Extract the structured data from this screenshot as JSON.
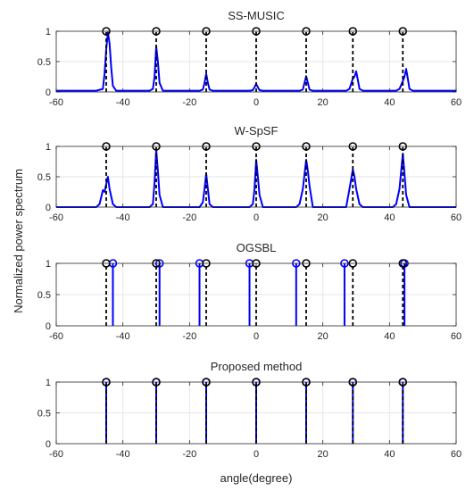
{
  "figure": {
    "ylabel": "Normalized power spectrum",
    "xlabel": "angle(degree)"
  },
  "colors": {
    "estimate": "#0000ff",
    "truth": "#000000",
    "grid": "#e6e6e6",
    "axis": "#262626"
  },
  "chart_data": [
    {
      "type": "line",
      "title": "SS-MUSIC",
      "xlim": [
        -60,
        60
      ],
      "ylim": [
        0,
        1
      ],
      "xticks": [
        "-60",
        "-40",
        "-20",
        "0",
        "20",
        "40",
        "60"
      ],
      "yticks": [
        "0",
        "0.5",
        "1"
      ],
      "grid": true,
      "true_doas": [
        -45,
        -30,
        -15,
        0,
        15,
        29,
        44
      ],
      "series": [
        {
          "x": [
            -60,
            -48,
            -46,
            -45.5,
            -45,
            -44.5,
            -44,
            -43.5,
            -43,
            -42,
            -32,
            -31,
            -30.5,
            -30,
            -29.5,
            -29,
            -28,
            -17,
            -16,
            -15.5,
            -15,
            -14.5,
            -14,
            -13,
            -2,
            -1,
            -0.5,
            0,
            0.5,
            1,
            2,
            13,
            14,
            14.5,
            15,
            15.5,
            16,
            17,
            27,
            28,
            29,
            29.5,
            30,
            30.5,
            31,
            32,
            42,
            43,
            44,
            44.5,
            45,
            45.5,
            46,
            47,
            60
          ],
          "y": [
            0.02,
            0.02,
            0.05,
            0.3,
            0.7,
            0.98,
            0.8,
            0.4,
            0.1,
            0.02,
            0.02,
            0.05,
            0.25,
            0.75,
            0.5,
            0.15,
            0.02,
            0.02,
            0.04,
            0.15,
            0.3,
            0.15,
            0.04,
            0.02,
            0.02,
            0.03,
            0.08,
            0.13,
            0.08,
            0.03,
            0.02,
            0.02,
            0.04,
            0.15,
            0.26,
            0.15,
            0.04,
            0.02,
            0.02,
            0.05,
            0.22,
            0.25,
            0.34,
            0.2,
            0.05,
            0.02,
            0.02,
            0.05,
            0.18,
            0.25,
            0.38,
            0.22,
            0.05,
            0.02,
            0.02
          ]
        }
      ]
    },
    {
      "type": "line",
      "title": "W-SpSF",
      "xlim": [
        -60,
        60
      ],
      "ylim": [
        0,
        1
      ],
      "xticks": [
        "-60",
        "-40",
        "-20",
        "0",
        "20",
        "40",
        "60"
      ],
      "yticks": [
        "0",
        "0.5",
        "1"
      ],
      "grid": true,
      "true_doas": [
        -45,
        -30,
        -15,
        0,
        15,
        29,
        44
      ],
      "series": [
        {
          "x": [
            -60,
            -48,
            -47,
            -46,
            -45.5,
            -45,
            -44.5,
            -44,
            -43,
            -42,
            -33,
            -32,
            -31,
            -30.5,
            -30,
            -29.5,
            -29,
            -28,
            -18,
            -17,
            -16,
            -15.5,
            -15,
            -14.5,
            -14,
            -13,
            -3,
            -2,
            -1,
            -0.5,
            0,
            0.5,
            1,
            2,
            11,
            12,
            13,
            14,
            15,
            15.5,
            16,
            17,
            26,
            27,
            28,
            29,
            29.5,
            30,
            31,
            32,
            40,
            41,
            42,
            43,
            44,
            44.5,
            45,
            46,
            60
          ],
          "y": [
            0,
            0,
            0.05,
            0.28,
            0.25,
            0.38,
            0.5,
            0.3,
            0.05,
            0,
            0,
            0,
            0.05,
            0.4,
            0.95,
            0.6,
            0.2,
            0,
            0,
            0,
            0.08,
            0.3,
            0.55,
            0.3,
            0.05,
            0,
            0,
            0,
            0.05,
            0.3,
            0.78,
            0.5,
            0.2,
            0,
            0,
            0,
            0.05,
            0.3,
            0.78,
            0.6,
            0.35,
            0,
            0,
            0,
            0.3,
            0.62,
            0.5,
            0.3,
            0.05,
            0,
            0,
            0,
            0.05,
            0.3,
            0.88,
            0.55,
            0.2,
            0,
            0
          ]
        }
      ]
    },
    {
      "type": "stem",
      "title": "OGSBL",
      "xlim": [
        -60,
        60
      ],
      "ylim": [
        0,
        1
      ],
      "xticks": [
        "-60",
        "-40",
        "-20",
        "0",
        "20",
        "40",
        "60"
      ],
      "yticks": [
        "0",
        "0.5",
        "1"
      ],
      "grid": true,
      "true_doas": [
        -45,
        -30,
        -15,
        0,
        15,
        29,
        44
      ],
      "estimated_doas": [
        -43,
        -29,
        -17,
        -2,
        12,
        26.5,
        44.5
      ],
      "estimated_values": [
        1,
        1,
        1,
        1,
        1,
        1,
        1
      ]
    },
    {
      "type": "stem",
      "title": "Proposed method",
      "xlim": [
        -60,
        60
      ],
      "ylim": [
        0,
        1
      ],
      "xticks": [
        "-60",
        "-40",
        "-20",
        "0",
        "20",
        "40",
        "60"
      ],
      "yticks": [
        "0",
        "0.5",
        "1"
      ],
      "grid": true,
      "true_doas": [
        -45,
        -30,
        -15,
        0,
        15,
        29,
        44
      ],
      "estimated_doas": [
        -45,
        -30,
        -15,
        0,
        15,
        29,
        44
      ],
      "estimated_values": [
        1,
        1,
        1,
        1,
        1,
        1,
        1
      ]
    }
  ]
}
